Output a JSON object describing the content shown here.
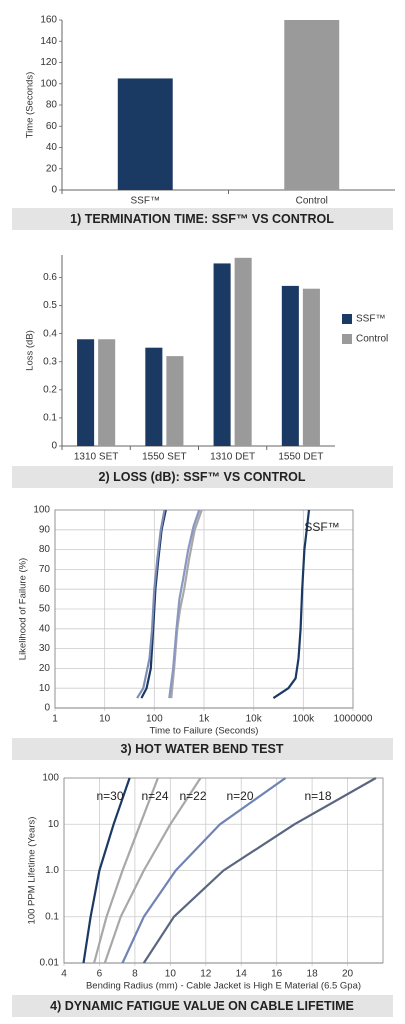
{
  "chart_data": [
    {
      "type": "bar",
      "title": "1) TERMINATION TIME: SSF™ VS CONTROL",
      "ylabel": "Time (Seconds)",
      "categories": [
        "SSF™",
        "Control"
      ],
      "values": [
        105,
        160
      ],
      "colors": [
        "#1b3a63",
        "#9a9a9a"
      ],
      "ylim": [
        0,
        160
      ],
      "yticks": [
        0,
        20,
        40,
        60,
        80,
        100,
        120,
        140,
        160
      ],
      "grid": false
    },
    {
      "type": "bar",
      "title": "2) LOSS (dB): SSF™ VS CONTROL",
      "ylabel": "Loss (dB)",
      "categories": [
        "1310 SET",
        "1550 SET",
        "1310 DET",
        "1550 DET"
      ],
      "series": [
        {
          "name": "SSF™",
          "color": "#1b3a63",
          "values": [
            0.38,
            0.35,
            0.65,
            0.57
          ]
        },
        {
          "name": "Control",
          "color": "#9a9a9a",
          "values": [
            0.38,
            0.32,
            0.67,
            0.56
          ]
        }
      ],
      "ylim": [
        0,
        0.68
      ],
      "yticks": [
        0,
        0.1,
        0.2,
        0.3,
        0.4,
        0.5,
        0.6
      ],
      "grid": false,
      "legend": "right"
    },
    {
      "type": "line",
      "title": "3) HOT WATER BEND TEST",
      "xlabel": "Time to Failure (Seconds)",
      "ylabel": "Likelihood of Failure (%)",
      "annotations": [
        "SSF™"
      ],
      "xscale": "log",
      "grid": true,
      "xlim": [
        1,
        1000000
      ],
      "xticks": [
        1,
        10,
        100,
        {
          "value": 1000,
          "label": "1k"
        },
        {
          "value": 10000,
          "label": "10k"
        },
        {
          "value": 100000,
          "label": "100k"
        },
        1000000
      ],
      "ylim": [
        0,
        100
      ],
      "yticks": [
        0,
        10,
        20,
        30,
        40,
        50,
        60,
        70,
        80,
        90,
        100
      ],
      "series": [
        {
          "color": "#1b3a63",
          "x": [
            55,
            70,
            85,
            95,
            105,
            120,
            140,
            170
          ],
          "values": [
            5,
            10,
            20,
            40,
            60,
            75,
            90,
            100
          ]
        },
        {
          "color": "#7f8db5",
          "x": [
            45,
            60,
            80,
            90,
            100,
            115,
            135,
            160
          ],
          "values": [
            5,
            10,
            25,
            40,
            60,
            75,
            90,
            100
          ]
        },
        {
          "color": "#a8a8a8",
          "x": [
            220,
            250,
            290,
            330,
            400,
            500,
            650,
            900
          ],
          "values": [
            5,
            20,
            40,
            50,
            60,
            75,
            90,
            100
          ]
        },
        {
          "color": "#8a97c0",
          "x": [
            200,
            240,
            280,
            320,
            380,
            480,
            620,
            800
          ],
          "values": [
            5,
            20,
            40,
            55,
            65,
            80,
            92,
            100
          ]
        },
        {
          "color": "#1b3a63",
          "x": [
            25000,
            50000,
            70000,
            80000,
            88000,
            95000,
            105000,
            130000
          ],
          "values": [
            5,
            10,
            15,
            25,
            40,
            60,
            80,
            100
          ]
        }
      ]
    },
    {
      "type": "line",
      "title": "4) DYNAMIC FATIGUE VALUE ON CABLE LIFETIME",
      "xlabel": "Bending Radius (mm) - Cable Jacket is High E Material (6.5 Gpa)",
      "ylabel": "100 PPM Lifetime (Years)",
      "annotations": [
        "n=30",
        "n=24",
        "n=22",
        "n=20",
        "n=18"
      ],
      "yscale": "log",
      "grid": true,
      "xlim": [
        4,
        22
      ],
      "xticks": [
        4,
        6,
        8,
        10,
        12,
        14,
        16,
        18,
        20
      ],
      "ylim": [
        0.01,
        100
      ],
      "yticks": [
        0.01,
        0.1,
        {
          "value": 1,
          "label": "1.0"
        },
        10,
        100
      ],
      "series": [
        {
          "color": "#1b3a63",
          "x": [
            5.1,
            5.5,
            6,
            6.8,
            7.7
          ],
          "values": [
            0.01,
            0.1,
            1,
            10,
            100
          ]
        },
        {
          "color": "#a8a8a8",
          "x": [
            5.7,
            6.4,
            7.3,
            8.3,
            9.3
          ],
          "values": [
            0.01,
            0.1,
            1,
            10,
            100
          ]
        },
        {
          "color": "#a8a8a8",
          "x": [
            6.3,
            7.2,
            8.5,
            10,
            11.7
          ],
          "values": [
            0.01,
            0.1,
            1,
            10,
            100
          ]
        },
        {
          "color": "#6f83b5",
          "x": [
            7.3,
            8.5,
            10.3,
            12.8,
            16.5
          ],
          "values": [
            0.01,
            0.1,
            1,
            10,
            100
          ]
        },
        {
          "color": "#5a6680",
          "x": [
            8.5,
            10.2,
            13,
            17,
            21.6
          ],
          "values": [
            0.01,
            0.1,
            1,
            10,
            100
          ]
        }
      ]
    }
  ]
}
